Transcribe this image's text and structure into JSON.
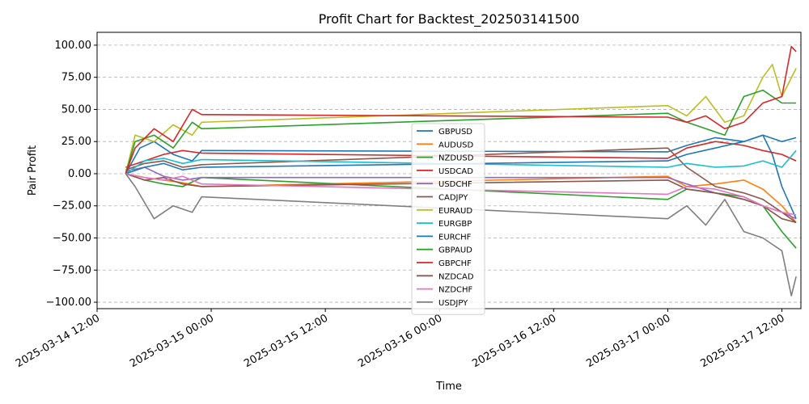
{
  "chart_data": {
    "type": "line",
    "title": "Profit Chart for Backtest_202503141500",
    "xlabel": "Time",
    "ylabel": "Pair Profit",
    "xlim": [
      "2025-03-14 12:00",
      "2025-03-17 14:00"
    ],
    "ylim": [
      -105,
      110
    ],
    "yticks": [
      100,
      75,
      50,
      25,
      0,
      -25,
      -50,
      -75,
      -100
    ],
    "ytick_labels": [
      "100.00",
      "75.00",
      "50.00",
      "25.00",
      "0.00",
      "−25.00",
      "−50.00",
      "−75.00",
      "−100.00"
    ],
    "xticks": [
      "2025-03-14 12:00",
      "2025-03-15 00:00",
      "2025-03-15 12:00",
      "2025-03-16 00:00",
      "2025-03-16 12:00",
      "2025-03-17 00:00",
      "2025-03-17 12:00"
    ],
    "xtick_labels": [
      "2025-03-14 12:00",
      "2025-03-15 00:00",
      "2025-03-15 12:00",
      "2025-03-16 00:00",
      "2025-03-16 12:00",
      "2025-03-17 00:00",
      "2025-03-17 12:00"
    ],
    "grid": "y-dashed",
    "legend_position": "center",
    "series": [
      {
        "name": "GBPUSD",
        "color": "#1f77b4",
        "x": [
          "2025-03-14 15:00",
          "2025-03-14 16:30",
          "2025-03-14 18:00",
          "2025-03-14 20:00",
          "2025-03-14 22:00",
          "2025-03-14 23:00",
          "2025-03-17 00:00",
          "2025-03-17 02:00",
          "2025-03-17 05:00",
          "2025-03-17 08:00",
          "2025-03-17 10:00",
          "2025-03-17 11:00",
          "2025-03-17 12:00",
          "2025-03-17 13:30"
        ],
        "y": [
          0,
          20,
          25,
          15,
          10,
          18,
          17,
          22,
          28,
          25,
          30,
          15,
          -10,
          -35
        ]
      },
      {
        "name": "AUDUSD",
        "color": "#ff7f0e",
        "x": [
          "2025-03-14 15:00",
          "2025-03-14 17:00",
          "2025-03-14 19:00",
          "2025-03-14 21:00",
          "2025-03-14 23:00",
          "2025-03-17 00:00",
          "2025-03-17 02:00",
          "2025-03-17 05:00",
          "2025-03-17 08:00",
          "2025-03-17 10:00",
          "2025-03-17 12:00",
          "2025-03-17 13:30"
        ],
        "y": [
          0,
          -3,
          -5,
          -7,
          -10,
          -2,
          -10,
          -8,
          -5,
          -12,
          -25,
          -38
        ]
      },
      {
        "name": "NZDUSD",
        "color": "#2ca02c",
        "x": [
          "2025-03-14 15:00",
          "2025-03-14 17:00",
          "2025-03-14 19:00",
          "2025-03-14 21:00",
          "2025-03-14 23:00",
          "2025-03-17 00:00",
          "2025-03-17 02:00",
          "2025-03-17 05:00",
          "2025-03-17 08:00",
          "2025-03-17 10:00",
          "2025-03-17 12:00",
          "2025-03-17 13:30"
        ],
        "y": [
          0,
          -5,
          -8,
          -10,
          -3,
          -20,
          -12,
          -15,
          -18,
          -25,
          -45,
          -58
        ]
      },
      {
        "name": "USDCAD",
        "color": "#d62728",
        "x": [
          "2025-03-14 15:00",
          "2025-03-14 17:00",
          "2025-03-14 19:00",
          "2025-03-14 21:00",
          "2025-03-14 23:00",
          "2025-03-17 00:00",
          "2025-03-17 02:00",
          "2025-03-17 05:00",
          "2025-03-17 08:00",
          "2025-03-17 10:00",
          "2025-03-17 12:00",
          "2025-03-17 13:30"
        ],
        "y": [
          5,
          10,
          15,
          18,
          16,
          12,
          20,
          25,
          22,
          18,
          15,
          10
        ]
      },
      {
        "name": "USDCHF",
        "color": "#9467bd",
        "x": [
          "2025-03-14 15:00",
          "2025-03-14 17:00",
          "2025-03-14 19:00",
          "2025-03-14 21:00",
          "2025-03-14 23:00",
          "2025-03-17 00:00",
          "2025-03-17 02:00",
          "2025-03-17 05:00",
          "2025-03-17 08:00",
          "2025-03-17 10:00",
          "2025-03-17 12:00",
          "2025-03-17 13:30"
        ],
        "y": [
          2,
          5,
          -2,
          -5,
          -3,
          -3,
          -8,
          -15,
          -20,
          -25,
          -30,
          -35
        ]
      },
      {
        "name": "CADJPY",
        "color": "#8c564b",
        "x": [
          "2025-03-14 15:00",
          "2025-03-14 17:00",
          "2025-03-14 19:00",
          "2025-03-14 21:00",
          "2025-03-14 23:00",
          "2025-03-17 00:00",
          "2025-03-17 02:00",
          "2025-03-17 05:00",
          "2025-03-17 08:00",
          "2025-03-17 10:00",
          "2025-03-17 12:00",
          "2025-03-17 13:30"
        ],
        "y": [
          3,
          8,
          10,
          5,
          7,
          20,
          5,
          -10,
          -15,
          -20,
          -30,
          -38
        ]
      },
      {
        "name": "EURAUD",
        "color": "#bcbd22",
        "x": [
          "2025-03-14 15:00",
          "2025-03-14 16:00",
          "2025-03-14 18:00",
          "2025-03-14 20:00",
          "2025-03-14 22:00",
          "2025-03-14 23:00",
          "2025-03-17 00:00",
          "2025-03-17 02:00",
          "2025-03-17 04:00",
          "2025-03-17 06:00",
          "2025-03-17 08:00",
          "2025-03-17 10:00",
          "2025-03-17 11:00",
          "2025-03-17 12:00",
          "2025-03-17 13:30"
        ],
        "y": [
          0,
          30,
          25,
          38,
          30,
          40,
          53,
          45,
          60,
          40,
          45,
          75,
          85,
          60,
          82
        ]
      },
      {
        "name": "EURGBP",
        "color": "#17becf",
        "x": [
          "2025-03-14 15:00",
          "2025-03-14 17:00",
          "2025-03-14 19:00",
          "2025-03-14 21:00",
          "2025-03-14 23:00",
          "2025-03-17 00:00",
          "2025-03-17 02:00",
          "2025-03-17 05:00",
          "2025-03-17 08:00",
          "2025-03-17 10:00",
          "2025-03-17 12:00",
          "2025-03-17 13:30"
        ],
        "y": [
          0,
          10,
          12,
          8,
          11,
          5,
          8,
          5,
          6,
          10,
          5,
          18
        ]
      },
      {
        "name": "EURCHF",
        "color": "#1f77b4",
        "x": [
          "2025-03-14 15:00",
          "2025-03-14 17:00",
          "2025-03-14 19:00",
          "2025-03-14 21:00",
          "2025-03-14 23:00",
          "2025-03-17 00:00",
          "2025-03-17 02:00",
          "2025-03-17 05:00",
          "2025-03-17 08:00",
          "2025-03-17 10:00",
          "2025-03-17 12:00",
          "2025-03-17 13:30"
        ],
        "y": [
          0,
          5,
          8,
          3,
          5,
          10,
          15,
          20,
          25,
          30,
          25,
          28
        ]
      },
      {
        "name": "GBPAUD",
        "color": "#2ca02c",
        "x": [
          "2025-03-14 15:00",
          "2025-03-14 16:00",
          "2025-03-14 18:00",
          "2025-03-14 20:00",
          "2025-03-14 22:00",
          "2025-03-14 23:00",
          "2025-03-17 00:00",
          "2025-03-17 02:00",
          "2025-03-17 04:00",
          "2025-03-17 06:00",
          "2025-03-17 08:00",
          "2025-03-17 10:00",
          "2025-03-17 12:00",
          "2025-03-17 13:30"
        ],
        "y": [
          0,
          25,
          30,
          20,
          40,
          35,
          47,
          40,
          35,
          30,
          60,
          65,
          55,
          55
        ]
      },
      {
        "name": "GBPCHF",
        "color": "#d62728",
        "x": [
          "2025-03-14 15:00",
          "2025-03-14 16:00",
          "2025-03-14 18:00",
          "2025-03-14 20:00",
          "2025-03-14 22:00",
          "2025-03-14 23:00",
          "2025-03-17 00:00",
          "2025-03-17 02:00",
          "2025-03-17 04:00",
          "2025-03-17 06:00",
          "2025-03-17 08:00",
          "2025-03-17 10:00",
          "2025-03-17 12:00",
          "2025-03-17 13:00",
          "2025-03-17 13:30"
        ],
        "y": [
          0,
          20,
          35,
          25,
          50,
          46,
          44,
          40,
          45,
          35,
          40,
          55,
          60,
          99,
          95
        ]
      },
      {
        "name": "NZDCAD",
        "color": "#8c564b",
        "x": [
          "2025-03-14 15:00",
          "2025-03-14 17:00",
          "2025-03-14 19:00",
          "2025-03-14 21:00",
          "2025-03-14 23:00",
          "2025-03-17 00:00",
          "2025-03-17 02:00",
          "2025-03-17 05:00",
          "2025-03-17 08:00",
          "2025-03-17 10:00",
          "2025-03-17 12:00",
          "2025-03-17 13:30"
        ],
        "y": [
          0,
          -5,
          -3,
          -8,
          -10,
          -5,
          -12,
          -15,
          -20,
          -25,
          -35,
          -38
        ]
      },
      {
        "name": "NZDCHF",
        "color": "#e377c2",
        "x": [
          "2025-03-14 15:00",
          "2025-03-14 17:00",
          "2025-03-14 19:00",
          "2025-03-14 21:00",
          "2025-03-14 23:00",
          "2025-03-17 00:00",
          "2025-03-17 02:00",
          "2025-03-17 05:00",
          "2025-03-17 08:00",
          "2025-03-17 10:00",
          "2025-03-17 12:00",
          "2025-03-17 13:30"
        ],
        "y": [
          0,
          -3,
          -5,
          -2,
          -8,
          -16,
          -10,
          -12,
          -18,
          -25,
          -30,
          -32
        ]
      },
      {
        "name": "USDJPY",
        "color": "#7f7f7f",
        "x": [
          "2025-03-14 15:00",
          "2025-03-14 16:00",
          "2025-03-14 18:00",
          "2025-03-14 20:00",
          "2025-03-14 22:00",
          "2025-03-14 23:00",
          "2025-03-17 00:00",
          "2025-03-17 02:00",
          "2025-03-17 04:00",
          "2025-03-17 06:00",
          "2025-03-17 08:00",
          "2025-03-17 10:00",
          "2025-03-17 12:00",
          "2025-03-17 13:00",
          "2025-03-17 13:30"
        ],
        "y": [
          0,
          -10,
          -35,
          -25,
          -30,
          -18,
          -35,
          -25,
          -40,
          -20,
          -45,
          -50,
          -60,
          -95,
          -80
        ]
      }
    ]
  }
}
